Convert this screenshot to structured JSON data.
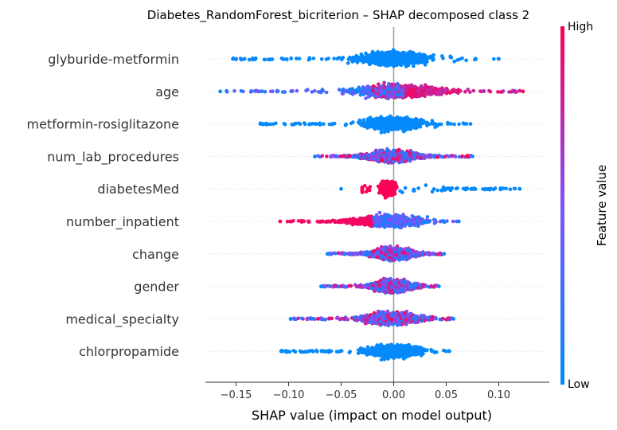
{
  "chart_data": {
    "type": "scatter",
    "subtype": "shap-beeswarm",
    "title": "Diabetes_RandomForest_bicriterion – SHAP decomposed class 2",
    "xlabel": "SHAP value (impact on model output)",
    "xlim": [
      -0.18,
      0.15
    ],
    "xticks": [
      -0.15,
      -0.1,
      -0.05,
      0.0,
      0.05,
      0.1
    ],
    "xtick_labels": [
      "−0.15",
      "−0.10",
      "−0.05",
      "0.00",
      "0.05",
      "0.10"
    ],
    "colorbar": {
      "title": "Feature value",
      "high_label": "High",
      "low_label": "Low",
      "high_color": "#ff0052",
      "low_color": "#008bfb",
      "mid_color": "#7c52ff"
    },
    "features": [
      {
        "name": "glyburide-metformin",
        "min": -0.153,
        "max": 0.1,
        "core": [
          -0.05,
          0.05
        ],
        "mode": "low"
      },
      {
        "name": "age",
        "min": -0.165,
        "max": 0.123,
        "core": [
          -0.06,
          0.07
        ],
        "mode": "split"
      },
      {
        "name": "metformin-rosiglitazone",
        "min": -0.127,
        "max": 0.073,
        "core": [
          -0.04,
          0.04
        ],
        "mode": "low"
      },
      {
        "name": "num_lab_procedures",
        "min": -0.075,
        "max": 0.075,
        "core": [
          -0.06,
          0.05
        ],
        "mode": "mixed"
      },
      {
        "name": "diabetesMed",
        "min": -0.05,
        "max": 0.12,
        "core": [
          -0.015,
          0.005
        ],
        "mode": "diabetes"
      },
      {
        "name": "number_inpatient",
        "min": -0.108,
        "max": 0.062,
        "core": [
          -0.07,
          0.05
        ],
        "mode": "inpatient"
      },
      {
        "name": "change",
        "min": -0.063,
        "max": 0.048,
        "core": [
          -0.045,
          0.04
        ],
        "mode": "mixed"
      },
      {
        "name": "gender",
        "min": -0.069,
        "max": 0.043,
        "core": [
          -0.035,
          0.03
        ],
        "mode": "mixed"
      },
      {
        "name": "medical_specialty",
        "min": -0.098,
        "max": 0.057,
        "core": [
          -0.05,
          0.04
        ],
        "mode": "mixed"
      },
      {
        "name": "chlorpropamide",
        "min": -0.107,
        "max": 0.053,
        "core": [
          -0.04,
          0.04
        ],
        "mode": "low"
      }
    ]
  }
}
